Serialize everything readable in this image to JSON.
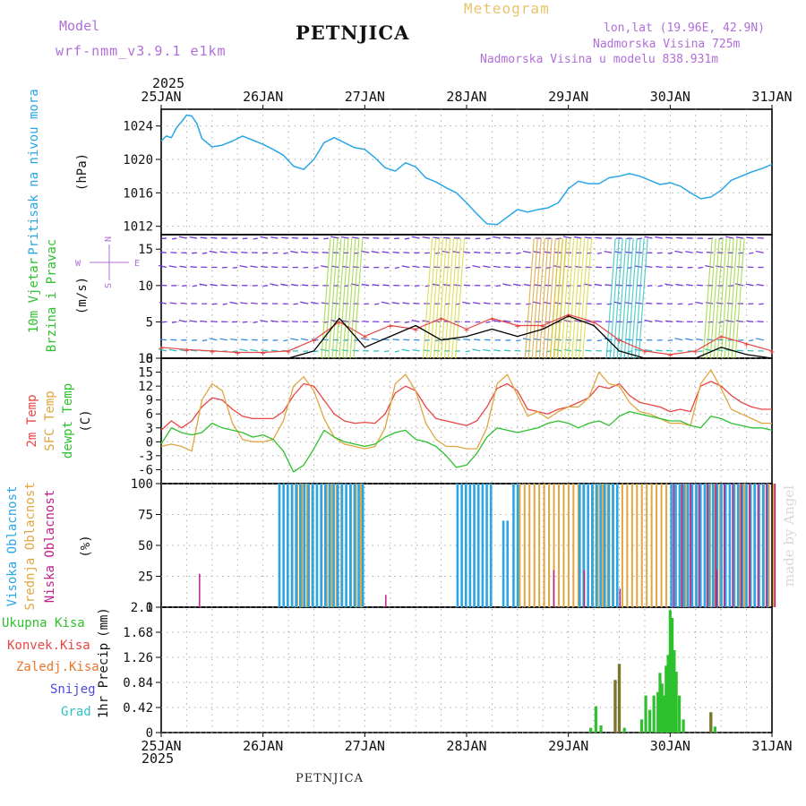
{
  "header": {
    "model_label": "Model",
    "model_name": "wrf-nmm_v3.9.1  e1km",
    "station": "PETNJICA",
    "meteogram_label": "Meteogram",
    "lonlat": "lon,lat (19.96E, 42.9N)",
    "altitude": "Nadmorska Visina 725m",
    "model_altitude": "Nadmorska Visina u modelu 838.931m",
    "year": "2025",
    "watermark": "made by Angel",
    "footer_station": "PETNJICA"
  },
  "colors": {
    "pressure": "#2aa6e6",
    "temp2m": "#e84545",
    "sfc": "#e0a640",
    "dewpt": "#2ec12e",
    "high_cloud": "#2aa6e6",
    "mid_cloud": "#e0a640",
    "low_cloud": "#c0208a",
    "precip_total": "#2ec12e",
    "precip_conv": "#e84545",
    "precip_frozen": "#e8772e",
    "snow": "#4a4ae0",
    "hail": "#2ec1c1",
    "wind_speed": "#e84545",
    "gust": "#000000"
  },
  "x_ticks": [
    "25JAN",
    "26JAN",
    "27JAN",
    "28JAN",
    "29JAN",
    "30JAN",
    "31JAN"
  ],
  "chart_data": [
    {
      "type": "line",
      "panel": "pressure",
      "ylabel_left": "Pritisak na nivou mora",
      "unit": "(hPa)",
      "ylim": [
        1011,
        1026
      ],
      "yticks": [
        "1012",
        "1016",
        "1020",
        "1024"
      ],
      "x_days": [
        0,
        0.05,
        0.1,
        0.15,
        0.2,
        0.25,
        0.3,
        0.35,
        0.4,
        0.5,
        0.6,
        0.7,
        0.8,
        0.9,
        1.0,
        1.1,
        1.2,
        1.3,
        1.4,
        1.5,
        1.6,
        1.7,
        1.8,
        1.9,
        2.0,
        2.1,
        2.2,
        2.3,
        2.4,
        2.5,
        2.6,
        2.7,
        2.8,
        2.9,
        3.0,
        3.1,
        3.2,
        3.3,
        3.4,
        3.5,
        3.6,
        3.7,
        3.8,
        3.9,
        4.0,
        4.1,
        4.2,
        4.3,
        4.4,
        4.5,
        4.6,
        4.7,
        4.8,
        4.9,
        5.0,
        5.1,
        5.2,
        5.3,
        5.4,
        5.5,
        5.6,
        5.7,
        5.8,
        5.9,
        6.0
      ],
      "values": [
        1022.2,
        1022.8,
        1022.6,
        1023.8,
        1024.5,
        1025.3,
        1025.2,
        1024.3,
        1022.5,
        1021.5,
        1021.7,
        1022.2,
        1022.8,
        1022.3,
        1021.8,
        1021.2,
        1020.5,
        1019.2,
        1018.8,
        1020.0,
        1022.0,
        1022.6,
        1022.0,
        1021.4,
        1021.2,
        1020.2,
        1019.0,
        1018.6,
        1019.6,
        1019.1,
        1017.8,
        1017.3,
        1016.6,
        1016.0,
        1014.8,
        1013.5,
        1012.3,
        1012.2,
        1013.1,
        1014.0,
        1013.7,
        1014.0,
        1014.2,
        1014.8,
        1016.5,
        1017.4,
        1017.1,
        1017.1,
        1017.8,
        1018.0,
        1018.3,
        1018.0,
        1017.5,
        1017.0,
        1017.2,
        1016.8,
        1016.0,
        1015.3,
        1015.5,
        1016.3,
        1017.5,
        1018.0,
        1018.5,
        1018.9,
        1019.4
      ]
    },
    {
      "type": "line",
      "panel": "wind",
      "ylabel_left": "10m Vjetar",
      "ylabel_left2": "Brzina i Pravac",
      "unit": "(m/s)",
      "compass": {
        "n": "N",
        "s": "S",
        "e": "E",
        "w": "W"
      },
      "ylim": [
        0,
        17
      ],
      "yticks": [
        "0",
        "5",
        "10",
        "15"
      ],
      "x_days": [
        0,
        0.25,
        0.5,
        0.75,
        1.0,
        1.25,
        1.5,
        1.75,
        2.0,
        2.25,
        2.5,
        2.75,
        3.0,
        3.25,
        3.5,
        3.75,
        4.0,
        4.25,
        4.5,
        4.75,
        5.0,
        5.25,
        5.5,
        5.75,
        6.0
      ],
      "series": [
        {
          "values": [
            1.5,
            1.2,
            1.0,
            0.8,
            0.8,
            1.0,
            2.5,
            5.0,
            3.0,
            4.5,
            4.0,
            5.5,
            4.0,
            5.5,
            4.5,
            4.5,
            6.0,
            5.0,
            2.5,
            1.0,
            0.5,
            1.0,
            3.0,
            2.0,
            1.0
          ]
        },
        {
          "values": [
            0,
            0,
            0,
            0,
            0,
            0,
            1.0,
            5.5,
            1.5,
            3.0,
            4.5,
            2.5,
            3.0,
            4.0,
            3.0,
            4.0,
            5.8,
            4.5,
            1.0,
            0,
            0,
            0,
            1.5,
            0.5,
            0
          ]
        }
      ]
    },
    {
      "type": "line",
      "panel": "temperature",
      "ylabel_left": "2m Temp",
      "ylabel_left2": "SFC Temp",
      "ylabel_left3": "dewpt Temp",
      "unit": "(C)",
      "ylim": [
        -9,
        18
      ],
      "yticks": [
        "-6",
        "-3",
        "0",
        "3",
        "6",
        "9",
        "12",
        "15",
        "18"
      ],
      "x_days": [
        0,
        0.1,
        0.2,
        0.3,
        0.4,
        0.5,
        0.6,
        0.7,
        0.8,
        0.9,
        1.0,
        1.1,
        1.2,
        1.3,
        1.4,
        1.5,
        1.6,
        1.7,
        1.8,
        1.9,
        2.0,
        2.1,
        2.2,
        2.3,
        2.4,
        2.5,
        2.6,
        2.7,
        2.8,
        2.9,
        3.0,
        3.1,
        3.2,
        3.3,
        3.4,
        3.5,
        3.6,
        3.7,
        3.8,
        3.9,
        4.0,
        4.1,
        4.2,
        4.3,
        4.4,
        4.5,
        4.6,
        4.7,
        4.8,
        4.9,
        5.0,
        5.1,
        5.2,
        5.3,
        5.4,
        5.5,
        5.6,
        5.7,
        5.8,
        5.9,
        6.0
      ],
      "series": [
        {
          "name": "2m Temp",
          "values": [
            2.5,
            4.5,
            3.0,
            4.5,
            7.5,
            9.5,
            9.0,
            7.0,
            5.5,
            5.0,
            5.0,
            5.0,
            6.5,
            10.0,
            12.5,
            12.0,
            9.0,
            6.0,
            4.5,
            4.0,
            4.2,
            4.0,
            6.0,
            10.5,
            12.0,
            11.0,
            7.5,
            5.0,
            4.5,
            4.0,
            3.5,
            4.5,
            7.5,
            11.5,
            12.5,
            11.0,
            7.0,
            6.5,
            6.0,
            7.0,
            7.5,
            8.5,
            9.5,
            12.0,
            11.5,
            12.5,
            10.0,
            8.5,
            8.0,
            7.5,
            6.5,
            7.0,
            6.5,
            12.0,
            13.0,
            12.0,
            10.0,
            8.5,
            7.5,
            7.0,
            7.0
          ]
        },
        {
          "name": "SFC Temp",
          "values": [
            -1.0,
            -0.5,
            -1.0,
            -2.0,
            9.0,
            12.5,
            11.0,
            4.0,
            0.5,
            0.0,
            0.0,
            0.5,
            4.5,
            12.0,
            14.0,
            11.0,
            5.0,
            1.0,
            -0.5,
            -1.0,
            -1.5,
            -1.0,
            3.0,
            12.5,
            14.5,
            11.0,
            4.0,
            0.5,
            -1.0,
            -1.0,
            -1.5,
            -1.5,
            3.0,
            12.5,
            14.5,
            10.0,
            5.5,
            6.5,
            5.0,
            6.5,
            7.5,
            7.5,
            9.5,
            15.0,
            12.5,
            12.0,
            8.5,
            6.5,
            6.0,
            5.0,
            4.0,
            4.0,
            3.5,
            12.5,
            15.5,
            11.5,
            7.0,
            6.0,
            5.0,
            4.0,
            4.0
          ]
        },
        {
          "name": "dewpt Temp",
          "values": [
            -0.5,
            3.0,
            2.0,
            1.5,
            2.0,
            4.0,
            3.0,
            2.5,
            2.0,
            1.0,
            1.5,
            0.5,
            -2.0,
            -6.5,
            -5.0,
            -1.5,
            2.5,
            1.0,
            0.0,
            -0.5,
            -1.0,
            -0.5,
            1.0,
            2.0,
            2.5,
            0.5,
            0.0,
            -1.0,
            -3.0,
            -5.5,
            -5.0,
            -2.5,
            1.0,
            3.0,
            2.5,
            2.0,
            2.5,
            3.0,
            4.0,
            4.5,
            4.0,
            3.0,
            4.0,
            4.5,
            3.5,
            5.5,
            6.5,
            6.0,
            5.5,
            5.0,
            4.5,
            4.5,
            3.5,
            3.0,
            5.5,
            5.0,
            4.0,
            3.5,
            3.0,
            3.0,
            2.5
          ]
        }
      ]
    },
    {
      "type": "bar",
      "panel": "clouds",
      "ylabel_left": "Visoka Oblacnost",
      "ylabel_left2": "Srednja Oblacnost",
      "ylabel_left3": "Niska Oblacnost",
      "unit": "(%)",
      "ylim": [
        0,
        100
      ],
      "yticks": [
        "0",
        "25",
        "50",
        "75",
        "100"
      ],
      "series": [
        {
          "name": "Visoka Oblacnost",
          "segments": [
            [
              1.15,
              1.98,
              100
            ],
            [
              2.9,
              3.25,
              100
            ],
            [
              3.35,
              3.42,
              70
            ],
            [
              3.45,
              3.5,
              100
            ],
            [
              4.1,
              4.5,
              100
            ],
            [
              5.0,
              5.98,
              100
            ]
          ]
        },
        {
          "name": "Srednja Oblacnost",
          "segments": [
            [
              1.22,
              1.98,
              100
            ],
            [
              3.5,
              6.0,
              100
            ]
          ]
        },
        {
          "name": "Niska Oblacnost",
          "points": [
            [
              0.37,
              27
            ],
            [
              2.2,
              10
            ],
            [
              3.85,
              30
            ],
            [
              4.15,
              30
            ],
            [
              4.5,
              15
            ],
            [
              5.45,
              30
            ]
          ]
        }
      ]
    },
    {
      "type": "bar",
      "panel": "precip",
      "ylabel_left": "1hr Precip",
      "unit": "(mm)",
      "legend": [
        "Ukupna Kisa",
        "Konvek.Kisa",
        "Zaledj.Kisa",
        "Snijeg",
        "Grad"
      ],
      "ylim": [
        0,
        2.1
      ],
      "yticks": [
        "0",
        "0.42",
        "0.84",
        "1.26",
        "1.68",
        "2.1"
      ],
      "series": [
        {
          "name": "Ukupna Kisa",
          "x_days": [
            4.22,
            4.27,
            4.32,
            4.46,
            4.5,
            4.55,
            4.72,
            4.76,
            4.8,
            4.84,
            4.88,
            4.9,
            4.92,
            4.94,
            4.96,
            4.98,
            5.0,
            5.02,
            5.04,
            5.06,
            5.09,
            5.13,
            5.4,
            5.44
          ],
          "values": [
            0.08,
            0.44,
            0.12,
            0.88,
            1.15,
            0.08,
            0.22,
            0.62,
            0.38,
            0.62,
            0.68,
            1.0,
            0.82,
            0.62,
            1.12,
            1.3,
            2.05,
            1.92,
            1.38,
            1.02,
            0.62,
            0.22,
            0.34,
            0.1
          ]
        },
        {
          "name": "Konvek.Kisa",
          "x_days": [
            4.46,
            4.5,
            5.4
          ],
          "values": [
            0.88,
            1.15,
            0.34
          ]
        }
      ]
    }
  ]
}
